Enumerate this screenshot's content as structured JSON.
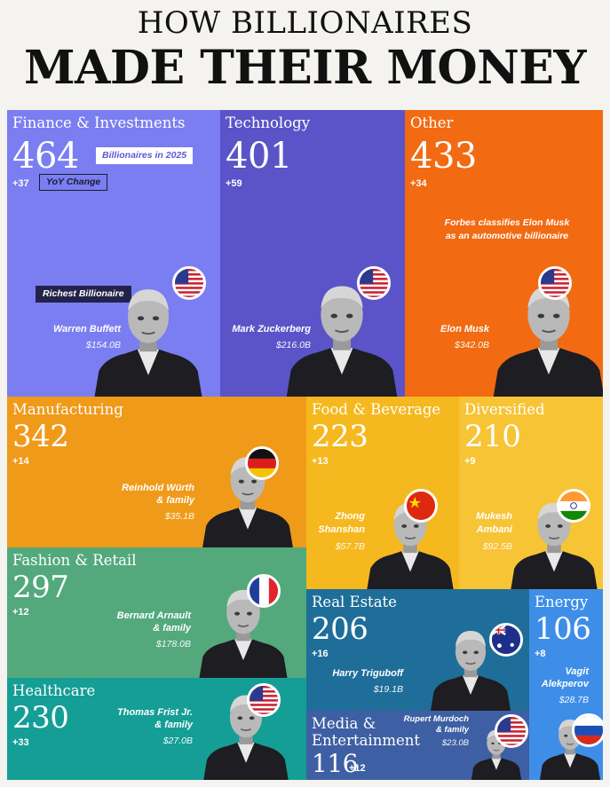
{
  "title_line1": "HOW BILLIONAIRES",
  "title_line2": "MADE THEIR MONEY",
  "callouts": {
    "billionaires_2025": "Billionaires in 2025",
    "yoy_change": "YoY Change",
    "richest": "Richest Billionaire",
    "musk_note": "Forbes classifies Elon Musk as an automotive billionaire"
  },
  "colors": {
    "finance": "#7b7ef0",
    "technology": "#5a54c8",
    "other": "#f26a12",
    "manufacturing": "#f09a1a",
    "food": "#f5b81e",
    "diversified": "#f7c436",
    "fashion": "#53a97c",
    "healthcare": "#149e96",
    "real_estate": "#1e6e99",
    "media": "#3e5fa3",
    "energy": "#3e8ee8"
  },
  "chart_data": {
    "type": "treemap",
    "categories": [
      {
        "key": "finance",
        "category": "Finance & Investments",
        "count": "464",
        "yoy": "+37",
        "person": "Warren Buffett",
        "net_worth": "$154.0B",
        "flag": "United States"
      },
      {
        "key": "technology",
        "category": "Technology",
        "count": "401",
        "yoy": "+59",
        "person": "Mark Zuckerberg",
        "net_worth": "$216.0B",
        "flag": "United States"
      },
      {
        "key": "other",
        "category": "Other",
        "count": "433",
        "yoy": "+34",
        "person": "Elon Musk",
        "net_worth": "$342.0B",
        "flag": "United States"
      },
      {
        "key": "manufacturing",
        "category": "Manufacturing",
        "count": "342",
        "yoy": "+14",
        "person": "Reinhold Würth & family",
        "net_worth": "$35.1B",
        "flag": "Germany"
      },
      {
        "key": "food",
        "category": "Food & Beverage",
        "count": "223",
        "yoy": "+13",
        "person": "Zhong Shanshan",
        "net_worth": "$57.7B",
        "flag": "China"
      },
      {
        "key": "diversified",
        "category": "Diversified",
        "count": "210",
        "yoy": "+9",
        "person": "Mukesh Ambani",
        "net_worth": "$92.5B",
        "flag": "India"
      },
      {
        "key": "fashion",
        "category": "Fashion & Retail",
        "count": "297",
        "yoy": "+12",
        "person": "Bernard Arnault & family",
        "net_worth": "$178.0B",
        "flag": "France"
      },
      {
        "key": "healthcare",
        "category": "Healthcare",
        "count": "230",
        "yoy": "+33",
        "person": "Thomas Frist Jr. & family",
        "net_worth": "$27.0B",
        "flag": "United States"
      },
      {
        "key": "real_estate",
        "category": "Real Estate",
        "count": "206",
        "yoy": "+16",
        "person": "Harry Triguboff",
        "net_worth": "$19.1B",
        "flag": "Australia"
      },
      {
        "key": "media",
        "category": "Media & Entertainment",
        "count": "116",
        "yoy": "+12",
        "person": "Rupert Murdoch & family",
        "net_worth": "$23.0B",
        "flag": "United States"
      },
      {
        "key": "energy",
        "category": "Energy",
        "count": "106",
        "yoy": "+8",
        "person": "Vagit Alekperov",
        "net_worth": "$28.7B",
        "flag": "Russia"
      }
    ]
  },
  "display": {
    "finance": {
      "category": "Finance & Investments",
      "count": "464",
      "yoy": "+37",
      "name": "Warren Buffett",
      "worth": "$154.0B"
    },
    "technology": {
      "category": "Technology",
      "count": "401",
      "yoy": "+59",
      "name": "Mark Zuckerberg",
      "worth": "$216.0B"
    },
    "other": {
      "category": "Other",
      "count": "433",
      "yoy": "+34",
      "name": "Elon Musk",
      "worth": "$342.0B"
    },
    "manufacturing": {
      "category": "Manufacturing",
      "count": "342",
      "yoy": "+14",
      "name1": "Reinhold Würth",
      "name2": "& family",
      "worth": "$35.1B"
    },
    "food": {
      "category": "Food & Beverage",
      "count": "223",
      "yoy": "+13",
      "name1": "Zhong",
      "name2": "Shanshan",
      "worth": "$57.7B"
    },
    "diversified": {
      "category": "Diversified",
      "count": "210",
      "yoy": "+9",
      "name1": "Mukesh",
      "name2": "Ambani",
      "worth": "$92.5B"
    },
    "fashion": {
      "category": "Fashion & Retail",
      "count": "297",
      "yoy": "+12",
      "name1": "Bernard Arnault",
      "name2": "& family",
      "worth": "$178.0B"
    },
    "healthcare": {
      "category": "Healthcare",
      "count": "230",
      "yoy": "+33",
      "name1": "Thomas Frist Jr.",
      "name2": "& family",
      "worth": "$27.0B"
    },
    "real_estate": {
      "category": "Real Estate",
      "count": "206",
      "yoy": "+16",
      "name": "Harry Triguboff",
      "worth": "$19.1B"
    },
    "media": {
      "category1": "Media &",
      "category2": "Entertainment",
      "count": "116",
      "yoy": "+12",
      "name1": "Rupert Murdoch",
      "name2": "& family",
      "worth": "$23.0B"
    },
    "energy": {
      "category": "Energy",
      "count": "106",
      "yoy": "+8",
      "name1": "Vagit",
      "name2": "Alekperov",
      "worth": "$28.7B"
    }
  }
}
